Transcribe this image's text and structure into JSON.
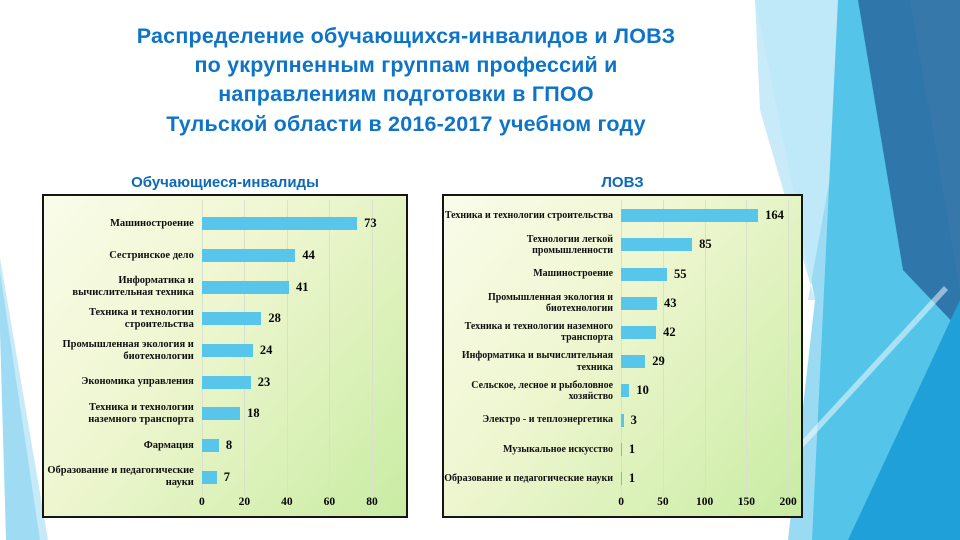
{
  "slide": {
    "title": "Распределение обучающихся-инвалидов и ЛОВЗ\nпо укрупненным группам профессий и\nнаправлениям подготовки в ГПОО\nТульской области в 2016-2017 учебном году"
  },
  "colors": {
    "title_blue": "#0E74C8",
    "chart_title_blue": "#0E6AB8",
    "bar_fill": "#58C6EA",
    "chart_border": "#151515",
    "grid_line": "#D9E0CC",
    "deco_light_blue": "#9ADBF3",
    "deco_pale_blue": "#C3E9F8",
    "deco_mid_blue": "#54C4E9",
    "deco_dark_blue": "#2E72A7",
    "deco_azure": "#20A0D8"
  },
  "chart_data": [
    {
      "type": "bar",
      "orientation": "horizontal",
      "title": "Обучающиеся-инвалиды",
      "categories": [
        "Машиностроение",
        "Сестринское дело",
        "Информатика и вычислительная техника",
        "Техника  и  технологии строительства",
        "Промышленная экология и биотехнологии",
        "Экономика управления",
        "Техника  и  технологии наземного транспорта",
        "Фармация",
        "Образование и педагогические науки"
      ],
      "values": [
        73,
        44,
        41,
        28,
        24,
        23,
        18,
        8,
        7
      ],
      "xlabel": "",
      "ylabel": "",
      "xlim": [
        0,
        80
      ],
      "xticks": [
        0,
        20,
        40,
        60,
        80
      ],
      "grid": true,
      "value_labels": true,
      "legend": "none"
    },
    {
      "type": "bar",
      "orientation": "horizontal",
      "title": "ЛОВЗ",
      "categories": [
        "Техника  и  технологии строительства",
        "Технологии легкой промышленности",
        "Машиностроение",
        "Промышленная экология и биотехнологии",
        "Техника  и  технологии наземного транспорта",
        "Информатика и вычислительная техника",
        "Сельское, лесное  и  рыболовное хозяйство",
        "Электро - и  теплоэнергетика",
        "Музыкальное искусство",
        "Образование и педагогические  науки"
      ],
      "values": [
        164,
        85,
        55,
        43,
        42,
        29,
        10,
        3,
        1,
        1
      ],
      "xlabel": "",
      "ylabel": "",
      "xlim": [
        0,
        200
      ],
      "xticks": [
        0,
        50,
        100,
        150,
        200
      ],
      "grid": true,
      "value_labels": true,
      "legend": "none"
    }
  ]
}
